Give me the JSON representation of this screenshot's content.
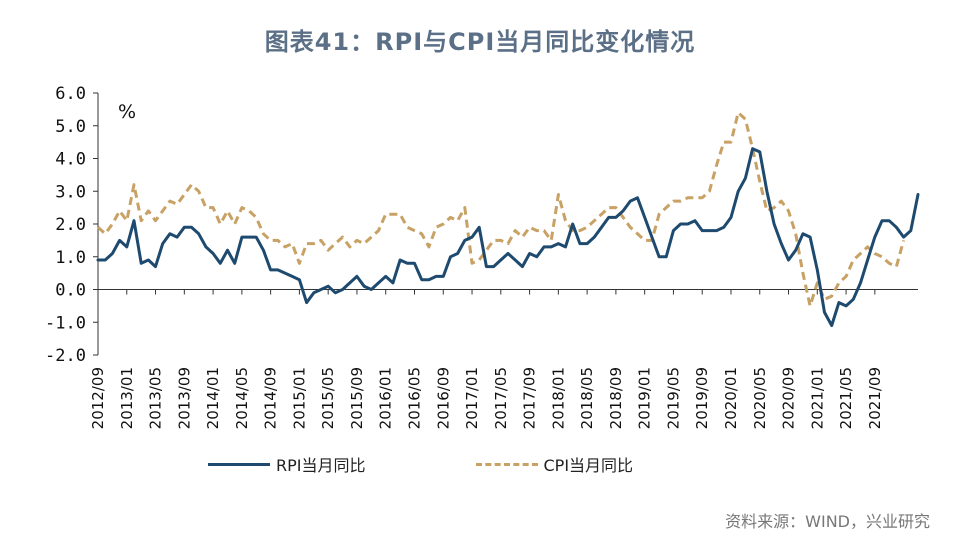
{
  "title": "图表41：RPI与CPI当月同比变化情况",
  "source": "资料来源：WIND，兴业研究",
  "chart_data": {
    "type": "line",
    "unit_label": "%",
    "ylim": [
      -2.0,
      6.0
    ],
    "y_ticks": [
      "6.0",
      "5.0",
      "4.0",
      "3.0",
      "2.0",
      "1.0",
      "0.0",
      "-1.0",
      "-2.0"
    ],
    "x_tick_labels": [
      "2012/09",
      "2013/01",
      "2013/05",
      "2013/09",
      "2014/01",
      "2014/05",
      "2014/09",
      "2015/01",
      "2015/05",
      "2015/09",
      "2016/01",
      "2016/05",
      "2016/09",
      "2017/01",
      "2017/05",
      "2017/09",
      "2018/01",
      "2018/05",
      "2018/09",
      "2019/01",
      "2019/05",
      "2019/09",
      "2020/01",
      "2020/05",
      "2020/09",
      "2021/01",
      "2021/05",
      "2021/09"
    ],
    "x_start": "2012/09",
    "series": [
      {
        "name": "RPI当月同比",
        "color": "#1d4a6e",
        "style": "solid",
        "values": [
          0.9,
          0.9,
          1.1,
          1.5,
          1.3,
          2.1,
          0.8,
          0.9,
          0.7,
          1.4,
          1.7,
          1.6,
          1.9,
          1.9,
          1.7,
          1.3,
          1.1,
          0.8,
          1.2,
          0.8,
          1.6,
          1.6,
          1.6,
          1.2,
          0.6,
          0.6,
          0.5,
          0.4,
          0.3,
          -0.4,
          -0.1,
          0.0,
          0.1,
          -0.1,
          0.0,
          0.2,
          0.4,
          0.1,
          0.0,
          0.2,
          0.4,
          0.2,
          0.9,
          0.8,
          0.8,
          0.3,
          0.3,
          0.4,
          0.4,
          1.0,
          1.1,
          1.5,
          1.6,
          1.9,
          0.7,
          0.7,
          0.9,
          1.1,
          0.9,
          0.7,
          1.1,
          1.0,
          1.3,
          1.3,
          1.4,
          1.3,
          2.0,
          1.4,
          1.4,
          1.6,
          1.9,
          2.2,
          2.2,
          2.4,
          2.7,
          2.8,
          2.2,
          1.6,
          1.0,
          1.0,
          1.8,
          2.0,
          2.0,
          2.1,
          1.8,
          1.8,
          1.8,
          1.9,
          2.2,
          3.0,
          3.4,
          4.3,
          4.2,
          3.0,
          2.0,
          1.4,
          0.9,
          1.2,
          1.7,
          1.6,
          0.6,
          -0.7,
          -1.1,
          -0.4,
          -0.5,
          -0.3,
          0.2,
          0.9,
          1.6,
          2.1,
          2.1,
          1.9,
          1.6,
          1.8,
          2.9
        ]
      },
      {
        "name": "CPI当月同比",
        "color": "#c8a165",
        "style": "dashed",
        "values": [
          1.9,
          1.7,
          2.0,
          2.4,
          2.1,
          3.2,
          2.1,
          2.4,
          2.1,
          2.4,
          2.7,
          2.6,
          2.9,
          3.2,
          3.0,
          2.5,
          2.5,
          2.0,
          2.4,
          2.0,
          2.5,
          2.4,
          2.2,
          1.7,
          1.5,
          1.5,
          1.3,
          1.4,
          0.8,
          1.4,
          1.4,
          1.5,
          1.2,
          1.4,
          1.6,
          1.3,
          1.5,
          1.4,
          1.6,
          1.8,
          2.3,
          2.3,
          2.3,
          1.9,
          1.8,
          1.7,
          1.3,
          1.9,
          2.0,
          2.2,
          2.1,
          2.5,
          0.8,
          0.9,
          1.2,
          1.5,
          1.5,
          1.4,
          1.8,
          1.6,
          1.9,
          1.8,
          1.8,
          1.5,
          2.9,
          2.1,
          1.8,
          1.8,
          1.9,
          2.1,
          2.3,
          2.5,
          2.5,
          2.2,
          1.9,
          1.7,
          1.5,
          1.5,
          2.3,
          2.5,
          2.7,
          2.7,
          2.8,
          2.8,
          2.8,
          3.0,
          3.8,
          4.5,
          4.5,
          5.4,
          5.2,
          4.3,
          3.3,
          2.4,
          2.5,
          2.7,
          2.4,
          1.7,
          0.5,
          -0.5,
          0.2,
          -0.3,
          -0.2,
          0.2,
          0.4,
          0.9,
          1.1,
          1.3,
          1.1,
          1.0,
          0.8,
          0.7,
          1.5
        ]
      }
    ],
    "legend_position": "bottom",
    "grid": false
  }
}
